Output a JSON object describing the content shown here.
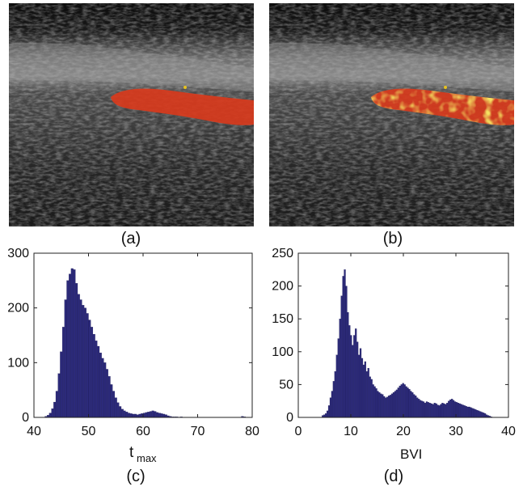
{
  "figure": {
    "panels": [
      {
        "caption": "(a)",
        "kind": "ultrasound",
        "overlay": "uniform-red"
      },
      {
        "caption": "(b)",
        "kind": "ultrasound",
        "overlay": "mottled-red-yellow"
      },
      {
        "caption": "(c)"
      },
      {
        "caption": "(d)"
      }
    ]
  },
  "colors": {
    "bar_fill": "#2c2a7a",
    "overlay_red": "#d8391c",
    "overlay_yellow": "#e7c21f"
  },
  "chart_data": [
    {
      "type": "bar",
      "panel": "(c)",
      "title": "",
      "xlabel_main": "t",
      "xlabel_sub": "max",
      "ylabel": "",
      "xlim": [
        40,
        80
      ],
      "ylim": [
        0,
        300
      ],
      "xticks": [
        40,
        50,
        60,
        70,
        80
      ],
      "yticks": [
        0,
        100,
        200,
        300
      ],
      "bin_width": 0.4,
      "x": [
        42.0,
        42.4,
        42.8,
        43.2,
        43.6,
        44.0,
        44.4,
        44.8,
        45.2,
        45.6,
        46.0,
        46.4,
        46.8,
        47.2,
        47.6,
        48.0,
        48.4,
        48.8,
        49.2,
        49.6,
        50.0,
        50.4,
        50.8,
        51.2,
        51.6,
        52.0,
        52.4,
        52.8,
        53.2,
        53.6,
        54.0,
        54.4,
        54.8,
        55.2,
        55.6,
        56.0,
        56.4,
        56.8,
        57.2,
        57.6,
        58.0,
        58.4,
        58.8,
        59.2,
        59.6,
        60.0,
        60.4,
        60.8,
        61.2,
        61.6,
        62.0,
        62.4,
        62.8,
        63.2,
        63.6,
        64.0,
        64.4,
        64.8,
        65.2,
        65.6,
        66.0,
        66.4,
        66.8,
        78.0,
        78.4
      ],
      "values": [
        2,
        4,
        8,
        16,
        28,
        48,
        80,
        120,
        165,
        215,
        250,
        262,
        272,
        270,
        245,
        225,
        215,
        205,
        200,
        190,
        178,
        165,
        152,
        140,
        130,
        118,
        108,
        100,
        88,
        75,
        60,
        48,
        36,
        27,
        20,
        15,
        12,
        10,
        8,
        7,
        6,
        6,
        5,
        6,
        7,
        8,
        9,
        10,
        11,
        12,
        11,
        9,
        8,
        7,
        6,
        5,
        3,
        2,
        1,
        1,
        1,
        0,
        1,
        2,
        1
      ]
    },
    {
      "type": "bar",
      "panel": "(d)",
      "title": "",
      "xlabel": "BVI",
      "ylabel": "",
      "xlim": [
        0,
        40
      ],
      "ylim": [
        0,
        250
      ],
      "xticks": [
        0,
        10,
        20,
        30,
        40
      ],
      "yticks": [
        0,
        50,
        100,
        150,
        200,
        250
      ],
      "bin_width": 0.3,
      "x": [
        4.5,
        4.8,
        5.1,
        5.4,
        5.7,
        6.0,
        6.3,
        6.6,
        6.9,
        7.2,
        7.5,
        7.8,
        8.1,
        8.4,
        8.7,
        9.0,
        9.3,
        9.6,
        9.9,
        10.2,
        10.5,
        10.8,
        11.1,
        11.4,
        11.7,
        12.0,
        12.3,
        12.6,
        12.9,
        13.2,
        13.5,
        13.8,
        14.1,
        14.4,
        14.7,
        15.0,
        15.3,
        15.6,
        15.9,
        16.2,
        16.5,
        16.8,
        17.1,
        17.4,
        17.7,
        18.0,
        18.3,
        18.6,
        18.9,
        19.2,
        19.5,
        19.8,
        20.1,
        20.4,
        20.7,
        21.0,
        21.3,
        21.6,
        21.9,
        22.2,
        22.5,
        22.8,
        23.1,
        23.4,
        23.7,
        24.0,
        24.3,
        24.6,
        24.9,
        25.2,
        25.5,
        25.8,
        26.1,
        26.4,
        26.7,
        27.0,
        27.3,
        27.6,
        27.9,
        28.2,
        28.5,
        28.8,
        29.1,
        29.4,
        29.7,
        30.0,
        30.3,
        30.6,
        30.9,
        31.2,
        31.5,
        31.8,
        32.1,
        32.4,
        32.7,
        33.0,
        33.3,
        33.6,
        33.9,
        34.2,
        34.5,
        34.8,
        35.1,
        35.4,
        35.7,
        36.0,
        36.3,
        36.6
      ],
      "values": [
        3,
        4,
        6,
        10,
        18,
        30,
        40,
        55,
        70,
        95,
        120,
        150,
        185,
        215,
        225,
        200,
        160,
        140,
        125,
        110,
        125,
        135,
        115,
        95,
        105,
        90,
        80,
        85,
        70,
        75,
        62,
        58,
        50,
        47,
        44,
        40,
        38,
        36,
        35,
        32,
        30,
        31,
        33,
        34,
        36,
        38,
        40,
        42,
        45,
        48,
        50,
        52,
        50,
        47,
        45,
        43,
        40,
        38,
        35,
        33,
        30,
        28,
        26,
        25,
        24,
        22,
        24,
        23,
        22,
        21,
        20,
        22,
        21,
        19,
        18,
        20,
        22,
        21,
        20,
        22,
        25,
        27,
        28,
        26,
        24,
        23,
        22,
        21,
        20,
        19,
        18,
        17,
        16,
        16,
        15,
        14,
        13,
        12,
        11,
        10,
        9,
        8,
        7,
        6,
        4,
        3,
        2,
        1
      ]
    }
  ]
}
